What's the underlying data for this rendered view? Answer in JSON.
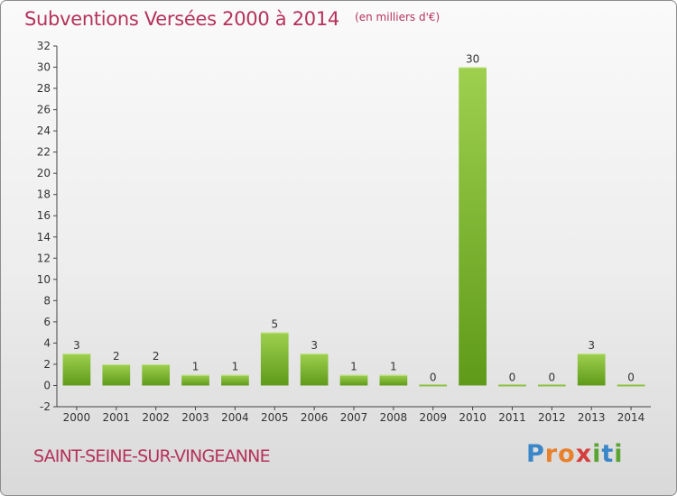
{
  "header": {
    "title": "Subventions Versées 2000 à 2014",
    "subtitle": "(en milliers d'€)"
  },
  "footer": {
    "town": "SAINT-SEINE-SUR-VINGEANNE",
    "logo": {
      "letters": [
        "P",
        "r",
        "o",
        "x",
        "i",
        "t",
        "i"
      ],
      "colors": [
        "#3a86c8",
        "#e8802c",
        "#e8802c",
        "#d63e3e",
        "#5aa532",
        "#3a86c8",
        "#5aa532"
      ]
    }
  },
  "chart_data": {
    "type": "bar",
    "categories": [
      "2000",
      "2001",
      "2002",
      "2003",
      "2004",
      "2005",
      "2006",
      "2007",
      "2008",
      "2009",
      "2010",
      "2011",
      "2012",
      "2013",
      "2014"
    ],
    "values": [
      3,
      2,
      2,
      1,
      1,
      5,
      3,
      1,
      1,
      0,
      30,
      0,
      0,
      3,
      0
    ],
    "ylim": [
      -2,
      32
    ],
    "yticks": [
      -2,
      0,
      2,
      4,
      6,
      8,
      10,
      12,
      14,
      16,
      18,
      20,
      22,
      24,
      26,
      28,
      30,
      32
    ],
    "grid": false,
    "colors": {
      "bar_top": "#9ed04e",
      "bar_bottom": "#5f9a19",
      "zero_line": "#8dc13f"
    }
  }
}
